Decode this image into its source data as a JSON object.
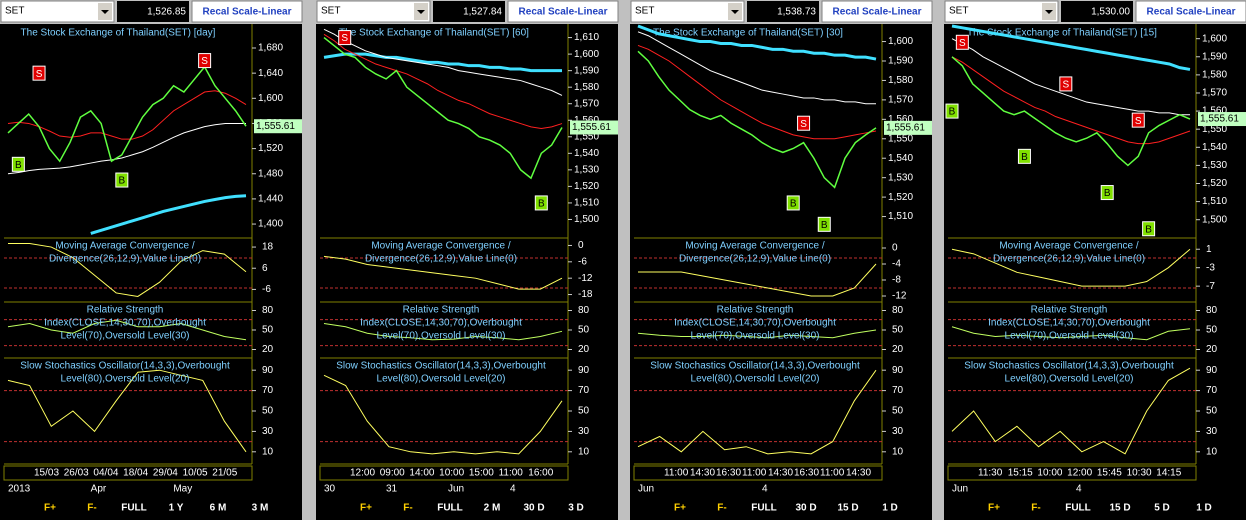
{
  "panels": [
    {
      "symbol": "SET",
      "last": "1,526.85",
      "button": "Recal Scale-Linear",
      "title": "The Stock Exchange of Thailand(SET) [day]",
      "ylim": [
        1381,
        1715
      ],
      "yticks": [
        {
          "value": 1400,
          "label": "1,400"
        },
        {
          "value": 1440,
          "label": "1,440"
        },
        {
          "value": 1480,
          "label": "1,480"
        },
        {
          "value": 1520,
          "label": "1,520"
        },
        {
          "value": 1560,
          "label": "1,560"
        },
        {
          "value": 1600,
          "label": "1,600"
        },
        {
          "value": 1640,
          "label": "1,640"
        },
        {
          "value": 1680,
          "label": "1,680"
        }
      ],
      "price_tag": {
        "value": 1555.61,
        "label": "1,555.61"
      },
      "close": [
        1545,
        1560,
        1575,
        1555,
        1520,
        1500,
        1530,
        1570,
        1580,
        1560,
        1500,
        1510,
        1540,
        1570,
        1590,
        1600,
        1620,
        1610,
        1630,
        1650,
        1620,
        1600,
        1580,
        1555.61
      ],
      "ma_red": [
        1560,
        1562,
        1560,
        1555,
        1548,
        1540,
        1538,
        1540,
        1545,
        1545,
        1540,
        1535,
        1535,
        1540,
        1550,
        1565,
        1580,
        1590,
        1600,
        1610,
        1612,
        1608,
        1600,
        1590
      ],
      "ma_white": [
        1480,
        1482,
        1485,
        1487,
        1488,
        1489,
        1491,
        1494,
        1497,
        1500,
        1502,
        1505,
        1510,
        1515,
        1522,
        1530,
        1538,
        1545,
        1550,
        1555,
        1558,
        1560,
        1560,
        1560
      ],
      "ma_cyan": [
        null,
        null,
        null,
        null,
        null,
        null,
        null,
        null,
        1385,
        1390,
        1395,
        1400,
        1405,
        1410,
        1415,
        1420,
        1424,
        1428,
        1432,
        1436,
        1439,
        1442,
        1444,
        1445
      ],
      "signals": [
        {
          "label": "S",
          "i": 3,
          "value": 1640
        },
        {
          "label": "B",
          "i": 1,
          "value": 1495
        },
        {
          "label": "B",
          "i": 11,
          "value": 1470
        },
        {
          "label": "S",
          "i": 19,
          "value": 1660
        }
      ],
      "macd": {
        "title": [
          "Moving Average Convergence /",
          "Divergence(26,12,9),Value Line(0)"
        ],
        "ylim": [
          -12,
          22
        ],
        "yticks": [
          18,
          6,
          -6
        ],
        "values": [
          20,
          20,
          18,
          12,
          2,
          -8,
          -10,
          -2,
          10,
          16,
          14,
          4
        ]
      },
      "rsi": {
        "title": [
          "Relative Strength",
          "Index(CLOSE,14,30,70),Overbought",
          "Level(70),Oversold Level(30)"
        ],
        "ylim": [
          10,
          90
        ],
        "yticks": [
          80,
          50,
          20
        ],
        "values": [
          55,
          60,
          50,
          45,
          60,
          65,
          55,
          55,
          60,
          50,
          40,
          35
        ]
      },
      "stoch": {
        "title": [
          "Slow Stochastics Oscillator(14,3,3),Overbought",
          "Level(80),Oversold Level(20)"
        ],
        "ylim": [
          0,
          100
        ],
        "yticks": [
          90,
          70,
          50,
          30,
          10
        ],
        "values": [
          80,
          75,
          35,
          50,
          30,
          60,
          88,
          90,
          85,
          80,
          40,
          10
        ]
      },
      "dates": [
        "15/03",
        "26/03",
        "04/04",
        "18/04",
        "29/04",
        "10/05",
        "21/05"
      ],
      "dates2": [
        "2013",
        "Apr",
        "May"
      ],
      "toolbar": [
        "F+",
        "F-",
        "FULL",
        "1 Y",
        "6 M",
        "3 M"
      ]
    },
    {
      "symbol": "SET",
      "last": "1,527.84",
      "button": "Recal Scale-Linear",
      "title": "The Stock Exchange of Thailand(SET) [60]",
      "ylim": [
        1490,
        1617
      ],
      "yticks": [
        {
          "value": 1500,
          "label": "1,500"
        },
        {
          "value": 1510,
          "label": "1,510"
        },
        {
          "value": 1520,
          "label": "1,520"
        },
        {
          "value": 1530,
          "label": "1,530"
        },
        {
          "value": 1540,
          "label": "1,540"
        },
        {
          "value": 1550,
          "label": "1,550"
        },
        {
          "value": 1560,
          "label": "1,560"
        },
        {
          "value": 1570,
          "label": "1,570"
        },
        {
          "value": 1580,
          "label": "1,580"
        },
        {
          "value": 1590,
          "label": "1,590"
        },
        {
          "value": 1600,
          "label": "1,600"
        },
        {
          "value": 1610,
          "label": "1,610"
        }
      ],
      "price_tag": {
        "value": 1555.61,
        "label": "1,555.61"
      },
      "close": [
        1610,
        1605,
        1600,
        1598,
        1592,
        1588,
        1585,
        1590,
        1580,
        1575,
        1570,
        1565,
        1560,
        1558,
        1555,
        1550,
        1548,
        1545,
        1540,
        1530,
        1525,
        1540,
        1545,
        1555.61
      ],
      "ma_red": [
        1612,
        1608,
        1603,
        1600,
        1597,
        1594,
        1592,
        1590,
        1588,
        1585,
        1582,
        1578,
        1575,
        1572,
        1570,
        1567,
        1564,
        1562,
        1560,
        1558,
        1556,
        1555,
        1556,
        1558
      ],
      "ma_white": [
        1615,
        1612,
        1608,
        1605,
        1602,
        1600,
        1598,
        1597,
        1596,
        1595,
        1594,
        1593,
        1592,
        1590,
        1589,
        1588,
        1587,
        1586,
        1585,
        1584,
        1582,
        1580,
        1578,
        1575
      ],
      "ma_cyan": [
        1598,
        1599,
        1600,
        1600,
        1600,
        1599,
        1598,
        1598,
        1597,
        1596,
        1595,
        1595,
        1594,
        1594,
        1593,
        1593,
        1592,
        1592,
        1591,
        1591,
        1590,
        1590,
        1590,
        1590
      ],
      "signals": [
        {
          "label": "S",
          "i": 2,
          "value": 1610
        },
        {
          "label": "B",
          "i": 21,
          "value": 1510
        }
      ],
      "macd": {
        "title": [
          "Moving Average Convergence /",
          "Divergence(26,12,9),Value Line(0)"
        ],
        "ylim": [
          -20,
          2
        ],
        "yticks": [
          0,
          -6,
          -12,
          -18
        ],
        "values": [
          -4,
          -5,
          -7,
          -8,
          -9,
          -10,
          -11,
          -12,
          -14,
          -16,
          -16,
          -12
        ]
      },
      "rsi": {
        "title": [
          "Relative Strength",
          "Index(CLOSE,14,30,70),Overbought",
          "Level(70),Oversold Level(30)"
        ],
        "ylim": [
          10,
          90
        ],
        "yticks": [
          80,
          50,
          20
        ],
        "values": [
          60,
          55,
          45,
          40,
          38,
          35,
          36,
          40,
          38,
          35,
          40,
          48
        ]
      },
      "stoch": {
        "title": [
          "Slow Stochastics Oscillator(14,3,3),Overbought",
          "Level(80),Oversold Level(20)"
        ],
        "ylim": [
          0,
          100
        ],
        "yticks": [
          90,
          70,
          50,
          30,
          10
        ],
        "values": [
          85,
          75,
          40,
          15,
          10,
          8,
          10,
          8,
          10,
          8,
          30,
          60
        ]
      },
      "dates": [
        "12:00",
        "09:00",
        "14:00",
        "10:00",
        "15:00",
        "11:00",
        "16:00"
      ],
      "dates2": [
        "30",
        "31",
        "Jun",
        "4"
      ],
      "toolbar": [
        "F+",
        "F-",
        "FULL",
        "2 M",
        "30 D",
        "3 D"
      ]
    },
    {
      "symbol": "SET",
      "last": "1,538.73",
      "button": "Recal Scale-Linear",
      "title": "The Stock Exchange of Thailand(SET) [30]",
      "ylim": [
        1500,
        1608
      ],
      "yticks": [
        {
          "value": 1510,
          "label": "1,510"
        },
        {
          "value": 1520,
          "label": "1,520"
        },
        {
          "value": 1530,
          "label": "1,530"
        },
        {
          "value": 1540,
          "label": "1,540"
        },
        {
          "value": 1550,
          "label": "1,550"
        },
        {
          "value": 1560,
          "label": "1,560"
        },
        {
          "value": 1570,
          "label": "1,570"
        },
        {
          "value": 1580,
          "label": "1,580"
        },
        {
          "value": 1590,
          "label": "1,590"
        },
        {
          "value": 1600,
          "label": "1,600"
        }
      ],
      "price_tag": {
        "value": 1555.61,
        "label": "1,555.61"
      },
      "close": [
        1595,
        1590,
        1582,
        1575,
        1570,
        1565,
        1562,
        1560,
        1562,
        1558,
        1555,
        1552,
        1548,
        1545,
        1543,
        1545,
        1548,
        1540,
        1530,
        1525,
        1540,
        1548,
        1552,
        1555.61
      ],
      "ma_red": [
        1598,
        1596,
        1593,
        1590,
        1586,
        1582,
        1578,
        1574,
        1570,
        1567,
        1564,
        1561,
        1558,
        1556,
        1554,
        1552,
        1551,
        1550,
        1550,
        1550,
        1551,
        1552,
        1553,
        1554
      ],
      "ma_white": [
        1605,
        1603,
        1600,
        1597,
        1594,
        1591,
        1588,
        1585,
        1583,
        1581,
        1579,
        1577,
        1575,
        1574,
        1573,
        1572,
        1571,
        1571,
        1570,
        1570,
        1569,
        1569,
        1568,
        1568
      ],
      "ma_cyan": [
        1608,
        1606,
        1604,
        1603,
        1602,
        1601,
        1600,
        1600,
        1599,
        1599,
        1598,
        1598,
        1597,
        1596,
        1596,
        1595,
        1595,
        1594,
        1594,
        1593,
        1593,
        1592,
        1592,
        1591
      ],
      "signals": [
        {
          "label": "S",
          "i": 16,
          "value": 1558
        },
        {
          "label": "B",
          "i": 15,
          "value": 1517
        },
        {
          "label": "B",
          "i": 18,
          "value": 1506
        }
      ],
      "macd": {
        "title": [
          "Moving Average Convergence /",
          "Divergence(26,12,9),Value Line(0)"
        ],
        "ylim": [
          -13,
          2
        ],
        "yticks": [
          0,
          -4,
          -8,
          -12
        ],
        "values": [
          -6,
          -6,
          -6,
          -7,
          -8,
          -9,
          -10,
          -11,
          -12,
          -12,
          -10,
          -4
        ]
      },
      "rsi": {
        "title": [
          "Relative Strength",
          "Index(CLOSE,14,30,70),Overbought",
          "Level(70),Oversold Level(30)"
        ],
        "ylim": [
          10,
          90
        ],
        "yticks": [
          80,
          50,
          20
        ],
        "values": [
          45,
          42,
          40,
          40,
          42,
          40,
          38,
          42,
          40,
          38,
          45,
          50
        ]
      },
      "stoch": {
        "title": [
          "Slow Stochastics Oscillator(14,3,3),Overbought",
          "Level(80),Oversold Level(20)"
        ],
        "ylim": [
          0,
          100
        ],
        "yticks": [
          90,
          70,
          50,
          30,
          10
        ],
        "values": [
          15,
          25,
          10,
          30,
          12,
          15,
          8,
          10,
          8,
          20,
          60,
          90
        ]
      },
      "dates": [
        "11:00",
        "14:30",
        "16:30",
        "11:00",
        "14:30",
        "16:30",
        "11:00",
        "14:30"
      ],
      "dates2": [
        "Jun",
        "4"
      ],
      "toolbar": [
        "F+",
        "F-",
        "FULL",
        "30 D",
        "15 D",
        "1 D"
      ]
    },
    {
      "symbol": "SET",
      "last": "1,530.00",
      "button": "Recal Scale-Linear",
      "title": "The Stock Exchange of Thailand(SET) [15]",
      "ylim": [
        1491,
        1607
      ],
      "yticks": [
        {
          "value": 1500,
          "label": "1,500"
        },
        {
          "value": 1510,
          "label": "1,510"
        },
        {
          "value": 1520,
          "label": "1,520"
        },
        {
          "value": 1530,
          "label": "1,530"
        },
        {
          "value": 1540,
          "label": "1,540"
        },
        {
          "value": 1550,
          "label": "1,550"
        },
        {
          "value": 1560,
          "label": "1,560"
        },
        {
          "value": 1570,
          "label": "1,570"
        },
        {
          "value": 1580,
          "label": "1,580"
        },
        {
          "value": 1590,
          "label": "1,590"
        },
        {
          "value": 1600,
          "label": "1,600"
        }
      ],
      "price_tag": {
        "value": 1555.61,
        "label": "1,555.61"
      },
      "close": [
        1590,
        1585,
        1575,
        1570,
        1565,
        1560,
        1558,
        1560,
        1556,
        1552,
        1548,
        1545,
        1543,
        1545,
        1548,
        1542,
        1535,
        1530,
        1535,
        1548,
        1552,
        1555,
        1558,
        1555.61
      ],
      "ma_red": [
        1590,
        1587,
        1583,
        1579,
        1575,
        1571,
        1568,
        1565,
        1562,
        1560,
        1557,
        1555,
        1553,
        1551,
        1549,
        1547,
        1545,
        1543,
        1542,
        1542,
        1543,
        1545,
        1547,
        1549
      ],
      "ma_white": [
        1600,
        1597,
        1594,
        1590,
        1587,
        1584,
        1581,
        1578,
        1575,
        1573,
        1571,
        1569,
        1567,
        1565,
        1564,
        1563,
        1562,
        1561,
        1560,
        1560,
        1559,
        1559,
        1558,
        1558
      ],
      "ma_cyan": [
        1607,
        1606,
        1605,
        1604,
        1603,
        1602,
        1601,
        1600,
        1599,
        1598,
        1597,
        1596,
        1595,
        1594,
        1593,
        1592,
        1591,
        1590,
        1589,
        1588,
        1587,
        1586,
        1584,
        1583
      ],
      "signals": [
        {
          "label": "B",
          "i": 0,
          "value": 1560
        },
        {
          "label": "S",
          "i": 1,
          "value": 1598
        },
        {
          "label": "B",
          "i": 7,
          "value": 1535
        },
        {
          "label": "S",
          "i": 11,
          "value": 1575
        },
        {
          "label": "B",
          "i": 15,
          "value": 1515
        },
        {
          "label": "S",
          "i": 18,
          "value": 1555
        },
        {
          "label": "B",
          "i": 19,
          "value": 1495
        }
      ],
      "macd": {
        "title": [
          "Moving Average Convergence /",
          "Divergence(26,12,9),Value Line(0)"
        ],
        "ylim": [
          -10,
          3
        ],
        "yticks": [
          1,
          -3,
          -7
        ],
        "values": [
          1,
          0,
          -2,
          -4,
          -5,
          -6,
          -7,
          -7,
          -7,
          -6,
          -3,
          1
        ]
      },
      "rsi": {
        "title": [
          "Relative Strength",
          "Index(CLOSE,14,30,70),Overbought",
          "Level(70),Oversold Level(30)"
        ],
        "ylim": [
          10,
          90
        ],
        "yticks": [
          80,
          50,
          20
        ],
        "values": [
          55,
          45,
          40,
          42,
          40,
          38,
          40,
          42,
          38,
          35,
          48,
          52
        ]
      },
      "stoch": {
        "title": [
          "Slow Stochastics Oscillator(14,3,3),Overbought",
          "Level(80),Oversold Level(20)"
        ],
        "ylim": [
          0,
          100
        ],
        "yticks": [
          90,
          70,
          50,
          30,
          10
        ],
        "values": [
          30,
          50,
          20,
          35,
          15,
          30,
          10,
          20,
          8,
          50,
          80,
          92
        ]
      },
      "dates": [
        "11:30",
        "15:15",
        "10:00",
        "12:00",
        "15:45",
        "10:30",
        "14:15"
      ],
      "dates2": [
        "Jun",
        "4"
      ],
      "toolbar": [
        "F+",
        "F-",
        "FULL",
        "15 D",
        "5 D",
        "1 D"
      ]
    }
  ]
}
